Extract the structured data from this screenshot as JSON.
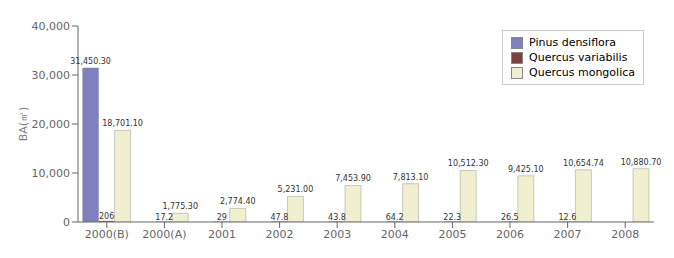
{
  "chart_data": {
    "type": "bar",
    "categories": [
      "2000(B)",
      "2000(A)",
      "2001",
      "2002",
      "2003",
      "2004",
      "2005",
      "2006",
      "2007",
      "2008"
    ],
    "series": [
      {
        "name": "Pinus densiflora",
        "color": "#8080c0",
        "values": [
          31450.3,
          0,
          0,
          0,
          0,
          0,
          0,
          0,
          0,
          0
        ],
        "value_labels": [
          "31,450.30",
          null,
          null,
          null,
          null,
          null,
          null,
          null,
          null,
          null
        ]
      },
      {
        "name": "Quercus variabilis",
        "color": "#804040",
        "values": [
          206,
          17.2,
          29,
          47.8,
          43.8,
          64.2,
          22.3,
          26.5,
          12.6,
          0
        ]
      },
      {
        "name": "Quercus mongolica",
        "color": "#f0f0d0",
        "values": [
          18701.1,
          1775.3,
          2774.4,
          5231.0,
          7453.9,
          7813.1,
          10512.3,
          9425.1,
          10654.74,
          10880.7
        ],
        "value_labels": [
          "18,701.10",
          "1,775.30",
          "2,774.40",
          "5,231.00",
          "7,453.90",
          "7,813.10",
          "10,512.30",
          "9,425.10",
          "10,654.74",
          "10,880.70"
        ]
      }
    ],
    "ylabel": "BA(㎡)",
    "ylim": [
      0,
      40000
    ],
    "yticks": [
      0,
      {
        "value": 10000,
        "label": "10,000"
      },
      {
        "value": 20000,
        "label": "20,000"
      },
      {
        "value": 30000,
        "label": "30,000"
      },
      {
        "value": 40000,
        "label": "40,000"
      }
    ],
    "legend": "upper right",
    "data_labels": true,
    "grid": false
  }
}
